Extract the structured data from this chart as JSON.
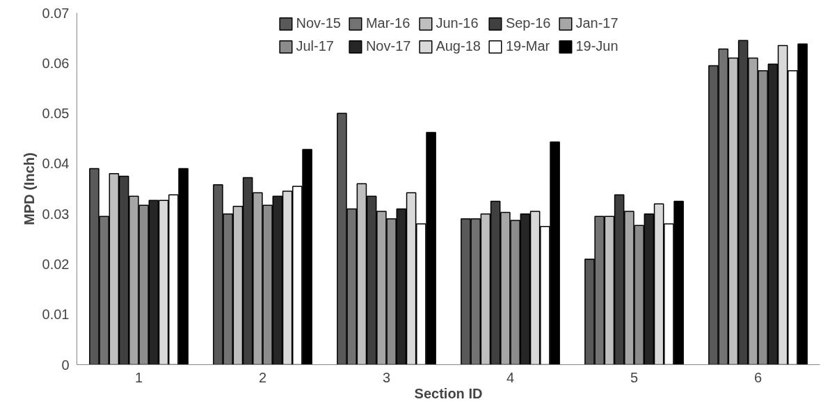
{
  "chart_data": {
    "type": "bar",
    "xlabel": "Section ID",
    "ylabel": "MPD (Inch)",
    "categories": [
      "1",
      "2",
      "3",
      "4",
      "5",
      "6"
    ],
    "ylim": [
      0,
      0.07
    ],
    "yticks": [
      0,
      0.01,
      0.02,
      0.03,
      0.04,
      0.05,
      0.06,
      0.07
    ],
    "grid": false,
    "legend": "top",
    "series": [
      {
        "name": "Nov-15",
        "color": "#595959",
        "values": [
          0.039,
          0.0358,
          0.05,
          0.029,
          0.021,
          0.0595
        ]
      },
      {
        "name": "Mar-16",
        "color": "#737373",
        "values": [
          0.0295,
          0.03,
          0.031,
          0.029,
          0.0295,
          0.0628
        ]
      },
      {
        "name": "Jun-16",
        "color": "#bfbfbf",
        "values": [
          0.038,
          0.0315,
          0.036,
          0.03,
          0.0295,
          0.061
        ]
      },
      {
        "name": "Sep-16",
        "color": "#404040",
        "values": [
          0.0375,
          0.0372,
          0.0335,
          0.0325,
          0.0338,
          0.0645
        ]
      },
      {
        "name": "Jan-17",
        "color": "#a6a6a6",
        "values": [
          0.0335,
          0.0342,
          0.0305,
          0.0303,
          0.0305,
          0.061
        ]
      },
      {
        "name": "Jul-17",
        "color": "#8c8c8c",
        "values": [
          0.0317,
          0.0317,
          0.029,
          0.0287,
          0.0277,
          0.0585
        ]
      },
      {
        "name": "Nov-17",
        "color": "#262626",
        "values": [
          0.0327,
          0.0335,
          0.031,
          0.03,
          0.03,
          0.0598
        ]
      },
      {
        "name": "Aug-18",
        "color": "#d9d9d9",
        "values": [
          0.0327,
          0.0345,
          0.0342,
          0.0305,
          0.032,
          0.0635
        ]
      },
      {
        "name": "19-Mar",
        "color": "#ffffff",
        "values": [
          0.0338,
          0.0355,
          0.028,
          0.0275,
          0.028,
          0.0585
        ]
      },
      {
        "name": "19-Jun",
        "color": "#000000",
        "values": [
          0.039,
          0.0428,
          0.0462,
          0.0443,
          0.0325,
          0.0638
        ]
      }
    ]
  }
}
